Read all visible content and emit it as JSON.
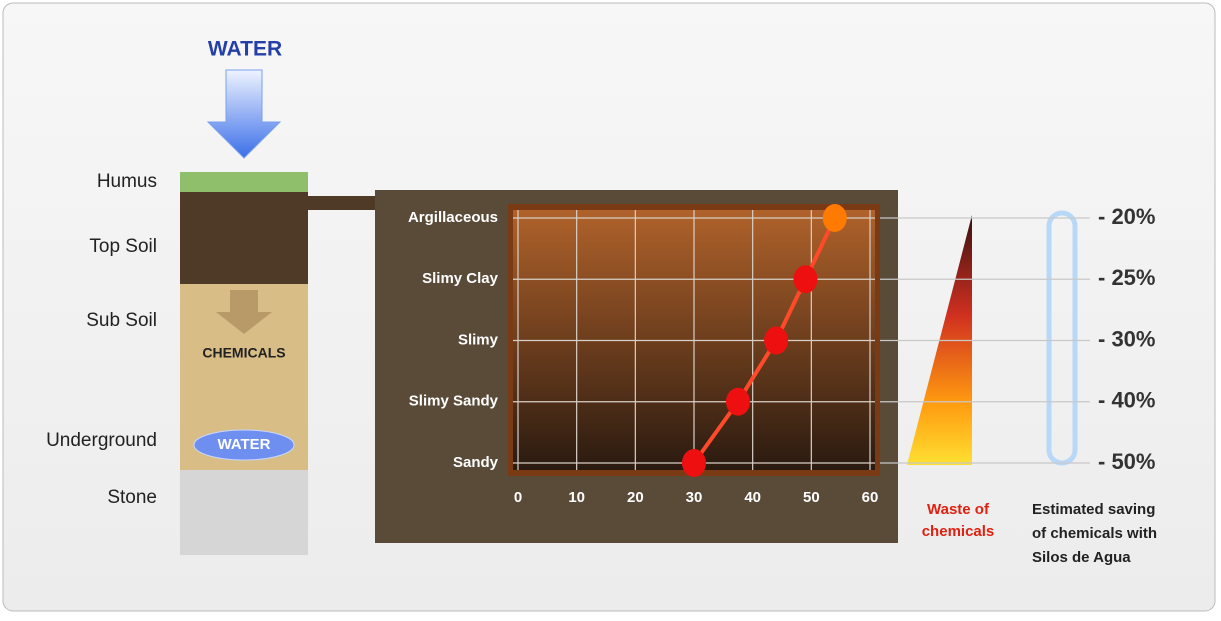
{
  "diagram": {
    "top_water": "WATER",
    "layers": [
      "Humus",
      "Top Soil",
      "Sub Soil",
      "Underground",
      "Stone"
    ],
    "chemicals": "CHEMICALS",
    "underground_water": "WATER",
    "waste": [
      "Waste of",
      "chemicals"
    ],
    "saving": [
      "Estimated saving",
      "of chemicals with",
      "Silos de Agua"
    ],
    "savings_labels": [
      "- 50%",
      "- 40%",
      "- 30%",
      "- 25%",
      "- 20%"
    ]
  },
  "chart_data": {
    "type": "line",
    "categories": [
      "Sandy",
      "Slimy Sandy",
      "Slimy",
      "Slimy Clay",
      "Argillaceous"
    ],
    "values": [
      30,
      37.5,
      44,
      49,
      54
    ],
    "colors": [
      "#ee1010",
      "#ee1010",
      "#ee1010",
      "#ee1010",
      "#ff7a00"
    ],
    "line_color": "#ff4a2a",
    "xlim": [
      0,
      60
    ],
    "xticks": [
      0,
      10,
      20,
      30,
      40,
      50,
      60
    ],
    "grid": true
  }
}
